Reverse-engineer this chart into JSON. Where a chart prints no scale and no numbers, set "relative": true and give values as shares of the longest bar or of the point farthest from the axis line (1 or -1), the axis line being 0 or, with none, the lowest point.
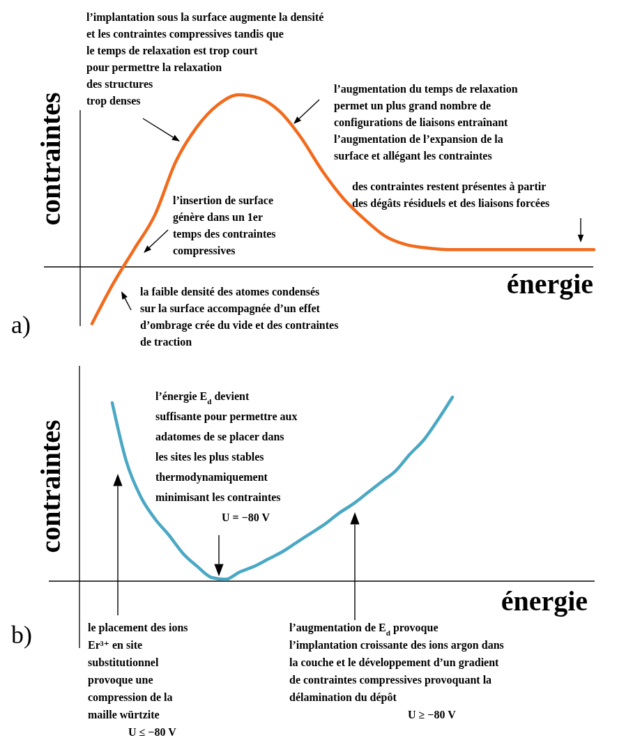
{
  "chart_data": [
    {
      "type": "line",
      "title": "a)",
      "xlabel": "énergie",
      "ylabel": "contraintes",
      "relative": true,
      "categories": [
        null,
        null,
        null,
        null,
        null,
        null,
        null,
        null,
        null,
        null,
        null,
        null,
        null,
        null,
        null,
        null,
        null,
        null,
        null,
        null,
        null,
        null,
        null,
        null,
        null
      ],
      "series": [
        {
          "color": "#f26b1d",
          "values": [
            -0.33,
            -0.1,
            0.1,
            0.3,
            0.61,
            0.81,
            0.94,
            1.0,
            0.98,
            0.9,
            0.75,
            0.56,
            0.4,
            0.28,
            0.18,
            0.13,
            0.11,
            0.1,
            0.1,
            0.1,
            0.1,
            0.1,
            0.1,
            0.1,
            0.1
          ]
        }
      ],
      "annotations": [
        "l’implantation sous la surface augmente la densité\net les contraintes compressives tandis que\nle temps de relaxation est trop court\npour permettre la relaxation\ndes structures\ntrop denses",
        "l’augmentation du temps de relaxation\npermet un plus grand nombre de\nconfigurations de liaisons entraînant\nl’augmentation de l’expansion de la\nsurface et allégant les contraintes",
        "des contraintes restent présentes à partir\ndes dégâts résiduels et des liaisons forcées",
        "l’insertion de surface\ngénère dans un 1er\ntemps des contraintes\ncompressives",
        "la faible densité des atomes condensés\nsur la surface accompagnée d’un effet\nd’ombrage crée du vide et des contraintes\nde traction"
      ]
    },
    {
      "type": "line",
      "title": "b)",
      "xlabel": "énergie",
      "ylabel": "contraintes",
      "relative": true,
      "categories": [
        null,
        null,
        null,
        null,
        null,
        null,
        null,
        null,
        null,
        null,
        null,
        null,
        null,
        null,
        null,
        null,
        null,
        null,
        null,
        null,
        null,
        null,
        null,
        null,
        null
      ],
      "series": [
        {
          "color": "#4aa8c4",
          "values": [
            0.97,
            0.65,
            0.46,
            0.34,
            0.25,
            0.15,
            0.08,
            0.02,
            0.01,
            0.05,
            0.08,
            0.12,
            0.16,
            0.21,
            0.26,
            0.31,
            0.37,
            0.42,
            0.48,
            0.54,
            0.6,
            0.69,
            0.77,
            0.88,
            1.0
          ]
        }
      ],
      "annotations": [
        "l’énergie E$_{d}$ devient\nsuffisante pour permettre aux\nadatomes de se placer dans\nles sites les plus stables\nthermodynamiquement\nminimisant les contraintes\nU = −80 V",
        "le placement des ions\nEr³⁺ en site\nsubstitutionnel\nprovoque une\ncompression de la\nmaille würtzite\nU ≤ −80 V",
        "l’augmentation de E$_{d}$ provoque\nl’implantation croissante des ions argon dans\nla couche et le développement d’un gradient\nde contraintes compressives provoquant la\ndélamination du dépôt\nU ≥ −80 V"
      ]
    }
  ]
}
